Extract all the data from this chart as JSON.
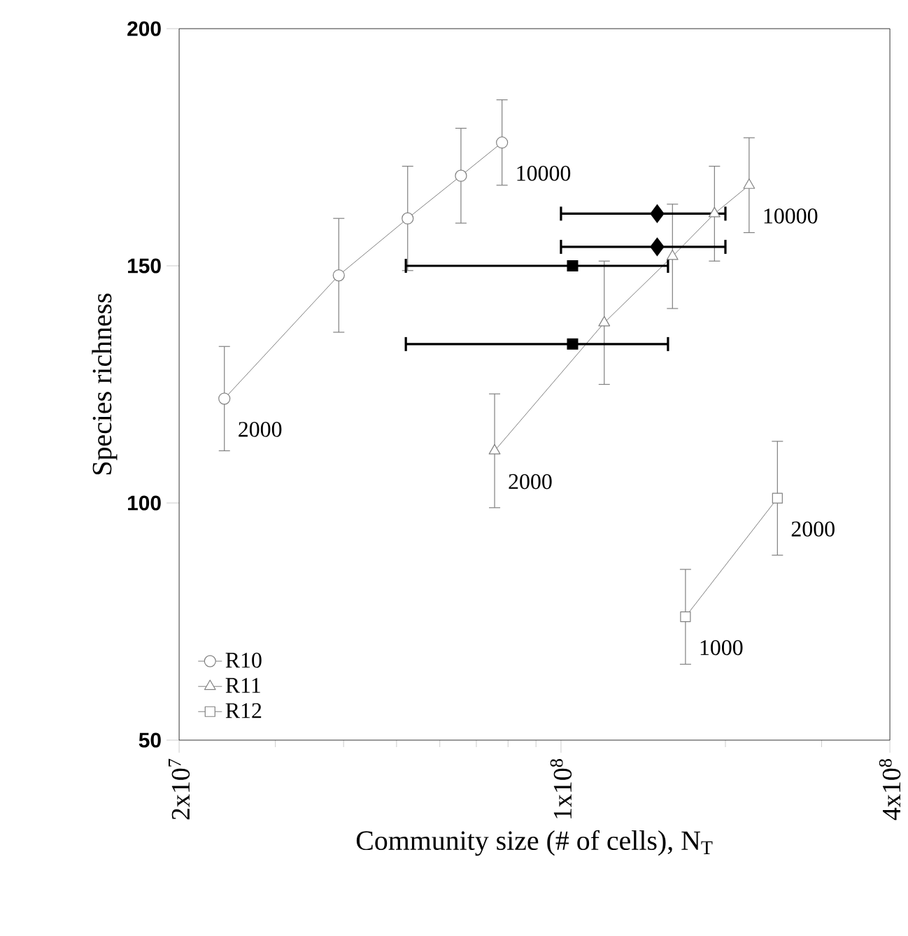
{
  "chart_data": {
    "type": "scatter",
    "xlabel": "Community size (# of cells), N$_{T}$",
    "ylabel": "Species richness",
    "log": "x",
    "legend": "bottom left",
    "xlim": [
      20000000,
      400000000
    ],
    "ylim": [
      50,
      200
    ],
    "xticks": [
      {
        "value": 20000000,
        "label": "2x10$^{7}$"
      },
      {
        "value": 30000000,
        "label": null
      },
      {
        "value": 40000000,
        "label": null
      },
      {
        "value": 50000000,
        "label": null
      },
      {
        "value": 60000000,
        "label": null
      },
      {
        "value": 70000000,
        "label": null
      },
      {
        "value": 80000000,
        "label": null
      },
      {
        "value": 90000000,
        "label": null
      },
      {
        "value": 100000000,
        "label": "1x10$^{8}$"
      },
      {
        "value": 200000000,
        "label": null
      },
      {
        "value": 300000000,
        "label": null
      },
      {
        "value": 400000000,
        "label": "4x10$^{8}$"
      }
    ],
    "yticks": [
      50,
      100,
      150,
      200
    ],
    "series": [
      {
        "name": "R10",
        "type": "line",
        "marker": "circle",
        "color": "#808080",
        "x": [
          24200000,
          39200000,
          52400000,
          65600000,
          78000000
        ],
        "values": [
          122,
          148,
          160,
          169,
          176
        ],
        "errors": [
          11,
          12,
          11,
          10,
          9
        ]
      },
      {
        "name": "R11",
        "type": "line",
        "marker": "triangle",
        "color": "#808080",
        "x": [
          75600000,
          120000000,
          160000000,
          191000000,
          221000000
        ],
        "values": [
          111,
          138,
          152,
          161,
          167
        ],
        "errors": [
          12,
          13,
          11,
          10,
          10
        ]
      },
      {
        "name": "R12",
        "type": "line",
        "marker": "square",
        "color": "#808080",
        "x": [
          169000000,
          249000000
        ],
        "values": [
          76,
          101
        ],
        "errors": [
          10,
          12
        ]
      },
      {
        "marker": "diamond",
        "color": "#000000",
        "x": [
          150000000
        ],
        "values": [
          161
        ],
        "xerrors": [
          [
            100000000,
            200000000
          ]
        ]
      },
      {
        "marker": "diamond",
        "color": "#000000",
        "x": [
          150000000
        ],
        "values": [
          154
        ],
        "xerrors": [
          [
            100000000,
            200000000
          ]
        ]
      },
      {
        "marker": "square",
        "color": "#000000",
        "x": [
          105000000
        ],
        "values": [
          150
        ],
        "xerrors": [
          [
            52000000,
            157000000
          ]
        ]
      },
      {
        "marker": "square",
        "color": "#000000",
        "x": [
          105000000
        ],
        "values": [
          133.5
        ],
        "xerrors": [
          [
            52000000,
            157000000
          ]
        ]
      }
    ],
    "annotations": [
      {
        "text": "2000",
        "x": 24200000,
        "y": 122
      },
      {
        "text": "10000",
        "x": 78000000,
        "y": 176
      },
      {
        "text": "2000",
        "x": 75600000,
        "y": 111
      },
      {
        "text": "10000",
        "x": 221000000,
        "y": 167
      },
      {
        "text": "1000",
        "x": 169000000,
        "y": 76
      },
      {
        "text": "2000",
        "x": 249000000,
        "y": 101
      }
    ]
  }
}
